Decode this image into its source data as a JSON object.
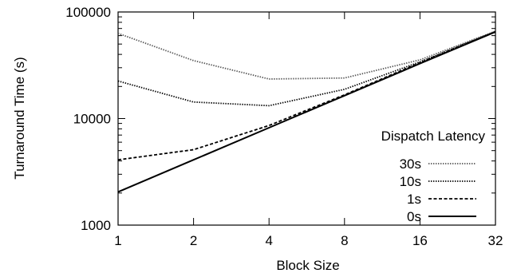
{
  "chart_data": {
    "type": "line",
    "xlabel": "Block Size",
    "ylabel": "Turnaround Time (s)",
    "xscale": "log2",
    "yscale": "log10",
    "xlim": [
      1,
      32
    ],
    "ylim": [
      1000,
      100000
    ],
    "x": [
      1,
      2,
      4,
      8,
      16,
      32
    ],
    "x_tick_labels": [
      "1",
      "2",
      "4",
      "8",
      "16",
      "32"
    ],
    "y_ticks": [
      1000,
      10000,
      100000
    ],
    "y_tick_labels": [
      "1000",
      "10000",
      "100000"
    ],
    "grid": false,
    "legend": {
      "title": "Dispatch Latency",
      "position": "right"
    },
    "series": [
      {
        "name": "30s",
        "values": [
          63000,
          35000,
          23500,
          24000,
          35500,
          66000
        ],
        "style": "dotted",
        "color": "#555555"
      },
      {
        "name": "10s",
        "values": [
          22500,
          14300,
          13200,
          18800,
          34000,
          65500
        ],
        "style": "dotted",
        "color": "#000000"
      },
      {
        "name": "1s",
        "values": [
          4100,
          5100,
          8600,
          16700,
          33500,
          65200
        ],
        "style": "dashed",
        "color": "#000000"
      },
      {
        "name": "0s",
        "values": [
          2050,
          4100,
          8200,
          16400,
          32800,
          65000
        ],
        "style": "solid",
        "color": "#000000"
      }
    ]
  }
}
